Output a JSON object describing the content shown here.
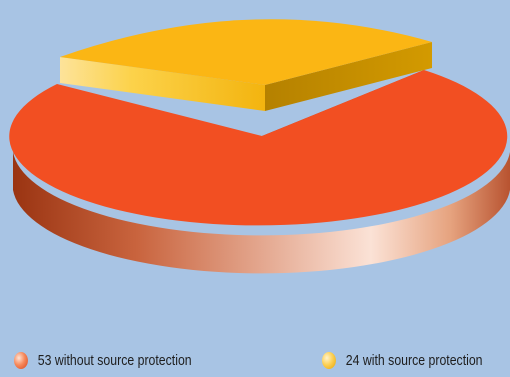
{
  "chart_data": {
    "type": "pie",
    "style": "3d",
    "categories": [
      "without source protection",
      "with source protection"
    ],
    "values": [
      53,
      24
    ],
    "colors": [
      "#f24f22",
      "#fbb614"
    ],
    "legend": {
      "placement": "bottom",
      "items": [
        {
          "label": "53 without source protection",
          "color": "#f24f22"
        },
        {
          "label": "24 with source protection",
          "color": "#fbb614"
        }
      ]
    }
  }
}
